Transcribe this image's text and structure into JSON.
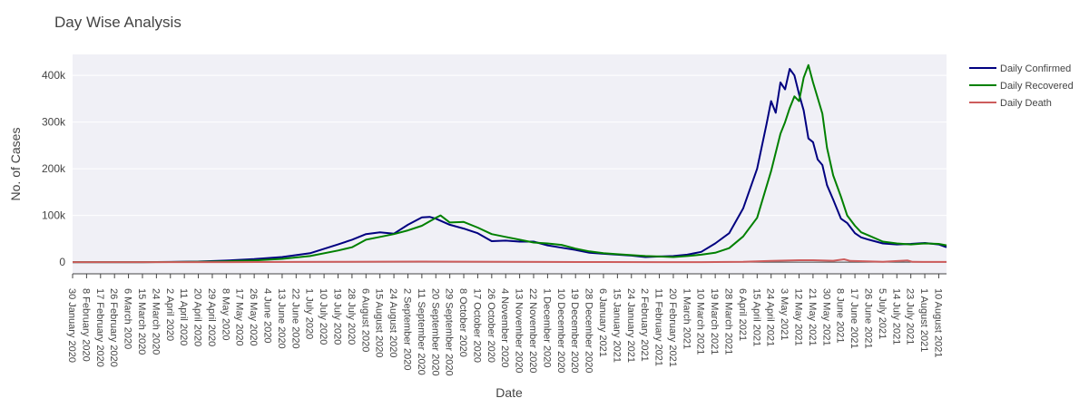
{
  "chart_data": {
    "type": "line",
    "title": "Day Wise Analysis",
    "xlabel": "Date",
    "ylabel": "No. of Cases",
    "x_range": [
      "2020-01-30",
      "2021-08-15"
    ],
    "ylim": [
      -25000,
      445000
    ],
    "y_ticks": [
      {
        "value": 0,
        "label": "0"
      },
      {
        "value": 100000,
        "label": "100k"
      },
      {
        "value": 200000,
        "label": "200k"
      },
      {
        "value": 300000,
        "label": "300k"
      },
      {
        "value": 400000,
        "label": "400k"
      }
    ],
    "x_ticks": [
      {
        "date": "2020-01-30",
        "label": "30 January 2020"
      },
      {
        "date": "2020-02-08",
        "label": "8 February 2020"
      },
      {
        "date": "2020-02-17",
        "label": "17 February 2020"
      },
      {
        "date": "2020-02-26",
        "label": "26 February 2020"
      },
      {
        "date": "2020-03-06",
        "label": "6 March 2020"
      },
      {
        "date": "2020-03-15",
        "label": "15 March 2020"
      },
      {
        "date": "2020-03-24",
        "label": "24 March 2020"
      },
      {
        "date": "2020-04-02",
        "label": "2 April 2020"
      },
      {
        "date": "2020-04-11",
        "label": "11 April 2020"
      },
      {
        "date": "2020-04-20",
        "label": "20 April 2020"
      },
      {
        "date": "2020-04-29",
        "label": "29 April 2020"
      },
      {
        "date": "2020-05-08",
        "label": "8 May 2020"
      },
      {
        "date": "2020-05-17",
        "label": "17 May 2020"
      },
      {
        "date": "2020-05-26",
        "label": "26 May 2020"
      },
      {
        "date": "2020-06-04",
        "label": "4 June 2020"
      },
      {
        "date": "2020-06-13",
        "label": "13 June 2020"
      },
      {
        "date": "2020-06-22",
        "label": "22 June 2020"
      },
      {
        "date": "2020-07-01",
        "label": "1 July 2020"
      },
      {
        "date": "2020-07-10",
        "label": "10 July 2020"
      },
      {
        "date": "2020-07-19",
        "label": "19 July 2020"
      },
      {
        "date": "2020-07-28",
        "label": "28 July 2020"
      },
      {
        "date": "2020-08-06",
        "label": "6 August 2020"
      },
      {
        "date": "2020-08-15",
        "label": "15 August 2020"
      },
      {
        "date": "2020-08-24",
        "label": "24 August 2020"
      },
      {
        "date": "2020-09-02",
        "label": "2 September 2020"
      },
      {
        "date": "2020-09-11",
        "label": "11 September 2020"
      },
      {
        "date": "2020-09-20",
        "label": "20 September 2020"
      },
      {
        "date": "2020-09-29",
        "label": "29 September 2020"
      },
      {
        "date": "2020-10-08",
        "label": "8 October 2020"
      },
      {
        "date": "2020-10-17",
        "label": "17 October 2020"
      },
      {
        "date": "2020-10-26",
        "label": "26 October 2020"
      },
      {
        "date": "2020-11-04",
        "label": "4 November 2020"
      },
      {
        "date": "2020-11-13",
        "label": "13 November 2020"
      },
      {
        "date": "2020-11-22",
        "label": "22 November 2020"
      },
      {
        "date": "2020-12-01",
        "label": "1 December 2020"
      },
      {
        "date": "2020-12-10",
        "label": "10 December 2020"
      },
      {
        "date": "2020-12-19",
        "label": "19 December 2020"
      },
      {
        "date": "2020-12-28",
        "label": "28 December 2020"
      },
      {
        "date": "2021-01-06",
        "label": "6 January 2021"
      },
      {
        "date": "2021-01-15",
        "label": "15 January 2021"
      },
      {
        "date": "2021-01-24",
        "label": "24 January 2021"
      },
      {
        "date": "2021-02-02",
        "label": "2 February 2021"
      },
      {
        "date": "2021-02-11",
        "label": "11 February 2021"
      },
      {
        "date": "2021-02-20",
        "label": "20 February 2021"
      },
      {
        "date": "2021-03-01",
        "label": "1 March 2021"
      },
      {
        "date": "2021-03-10",
        "label": "10 March 2021"
      },
      {
        "date": "2021-03-19",
        "label": "19 March 2021"
      },
      {
        "date": "2021-03-28",
        "label": "28 March 2021"
      },
      {
        "date": "2021-04-06",
        "label": "6 April 2021"
      },
      {
        "date": "2021-04-15",
        "label": "15 April 2021"
      },
      {
        "date": "2021-04-24",
        "label": "24 April 2021"
      },
      {
        "date": "2021-05-03",
        "label": "3 May 2021"
      },
      {
        "date": "2021-05-12",
        "label": "12 May 2021"
      },
      {
        "date": "2021-05-21",
        "label": "21 May 2021"
      },
      {
        "date": "2021-05-30",
        "label": "30 May 2021"
      },
      {
        "date": "2021-06-08",
        "label": "8 June 2021"
      },
      {
        "date": "2021-06-17",
        "label": "17 June 2021"
      },
      {
        "date": "2021-06-26",
        "label": "26 June 2021"
      },
      {
        "date": "2021-07-05",
        "label": "5 July 2021"
      },
      {
        "date": "2021-07-14",
        "label": "14 July 2021"
      },
      {
        "date": "2021-07-23",
        "label": "23 July 2021"
      },
      {
        "date": "2021-08-01",
        "label": "1 August 2021"
      },
      {
        "date": "2021-08-10",
        "label": "10 August 2021"
      }
    ],
    "series": [
      {
        "name": "Daily Confirmed",
        "color": "#000080",
        "points": [
          [
            "2020-01-30",
            0
          ],
          [
            "2020-03-15",
            100
          ],
          [
            "2020-04-02",
            500
          ],
          [
            "2020-04-20",
            1300
          ],
          [
            "2020-05-08",
            3300
          ],
          [
            "2020-05-26",
            6500
          ],
          [
            "2020-06-13",
            11000
          ],
          [
            "2020-07-01",
            19000
          ],
          [
            "2020-07-19",
            38000
          ],
          [
            "2020-07-28",
            48000
          ],
          [
            "2020-08-06",
            60000
          ],
          [
            "2020-08-15",
            64000
          ],
          [
            "2020-08-24",
            61000
          ],
          [
            "2020-09-02",
            80000
          ],
          [
            "2020-09-11",
            96000
          ],
          [
            "2020-09-16",
            97000
          ],
          [
            "2020-09-20",
            93000
          ],
          [
            "2020-09-29",
            80000
          ],
          [
            "2020-10-08",
            72000
          ],
          [
            "2020-10-17",
            62000
          ],
          [
            "2020-10-26",
            45000
          ],
          [
            "2020-11-04",
            46000
          ],
          [
            "2020-11-13",
            44000
          ],
          [
            "2020-11-22",
            44000
          ],
          [
            "2020-12-01",
            36000
          ],
          [
            "2020-12-10",
            31000
          ],
          [
            "2020-12-19",
            26000
          ],
          [
            "2020-12-28",
            20000
          ],
          [
            "2021-01-06",
            18000
          ],
          [
            "2021-01-15",
            16000
          ],
          [
            "2021-01-24",
            14000
          ],
          [
            "2021-02-02",
            11000
          ],
          [
            "2021-02-11",
            12000
          ],
          [
            "2021-02-20",
            13000
          ],
          [
            "2021-03-01",
            16000
          ],
          [
            "2021-03-10",
            22000
          ],
          [
            "2021-03-19",
            40000
          ],
          [
            "2021-03-28",
            62000
          ],
          [
            "2021-04-06",
            115000
          ],
          [
            "2021-04-15",
            200000
          ],
          [
            "2021-04-21",
            295000
          ],
          [
            "2021-04-24",
            345000
          ],
          [
            "2021-04-27",
            320000
          ],
          [
            "2021-04-30",
            385000
          ],
          [
            "2021-05-03",
            370000
          ],
          [
            "2021-05-06",
            414000
          ],
          [
            "2021-05-09",
            400000
          ],
          [
            "2021-05-12",
            360000
          ],
          [
            "2021-05-15",
            325000
          ],
          [
            "2021-05-18",
            265000
          ],
          [
            "2021-05-21",
            257000
          ],
          [
            "2021-05-24",
            220000
          ],
          [
            "2021-05-27",
            208000
          ],
          [
            "2021-05-30",
            165000
          ],
          [
            "2021-06-03",
            134000
          ],
          [
            "2021-06-08",
            93000
          ],
          [
            "2021-06-12",
            84000
          ],
          [
            "2021-06-17",
            62000
          ],
          [
            "2021-06-21",
            53000
          ],
          [
            "2021-06-26",
            48000
          ],
          [
            "2021-07-05",
            40000
          ],
          [
            "2021-07-14",
            38000
          ],
          [
            "2021-07-23",
            39000
          ],
          [
            "2021-08-01",
            41000
          ],
          [
            "2021-08-10",
            38000
          ],
          [
            "2021-08-15",
            32000
          ]
        ]
      },
      {
        "name": "Daily Recovered",
        "color": "#008000",
        "points": [
          [
            "2020-01-30",
            0
          ],
          [
            "2020-03-15",
            50
          ],
          [
            "2020-04-02",
            200
          ],
          [
            "2020-04-20",
            700
          ],
          [
            "2020-05-08",
            1800
          ],
          [
            "2020-05-26",
            3500
          ],
          [
            "2020-06-13",
            7000
          ],
          [
            "2020-07-01",
            13000
          ],
          [
            "2020-07-19",
            25000
          ],
          [
            "2020-07-28",
            32000
          ],
          [
            "2020-08-06",
            48000
          ],
          [
            "2020-08-15",
            54000
          ],
          [
            "2020-08-24",
            60000
          ],
          [
            "2020-09-02",
            68000
          ],
          [
            "2020-09-11",
            78000
          ],
          [
            "2020-09-20",
            95000
          ],
          [
            "2020-09-23",
            100000
          ],
          [
            "2020-09-29",
            85000
          ],
          [
            "2020-10-08",
            86000
          ],
          [
            "2020-10-17",
            74000
          ],
          [
            "2020-10-26",
            60000
          ],
          [
            "2020-11-04",
            54000
          ],
          [
            "2020-11-13",
            48000
          ],
          [
            "2020-11-22",
            42000
          ],
          [
            "2020-12-01",
            40000
          ],
          [
            "2020-12-10",
            37000
          ],
          [
            "2020-12-19",
            29000
          ],
          [
            "2020-12-28",
            23000
          ],
          [
            "2021-01-06",
            19000
          ],
          [
            "2021-01-15",
            17000
          ],
          [
            "2021-01-24",
            15000
          ],
          [
            "2021-02-02",
            13000
          ],
          [
            "2021-02-11",
            12000
          ],
          [
            "2021-02-20",
            11000
          ],
          [
            "2021-03-01",
            13000
          ],
          [
            "2021-03-10",
            16000
          ],
          [
            "2021-03-19",
            20000
          ],
          [
            "2021-03-28",
            30000
          ],
          [
            "2021-04-06",
            55000
          ],
          [
            "2021-04-15",
            95000
          ],
          [
            "2021-04-24",
            195000
          ],
          [
            "2021-04-30",
            275000
          ],
          [
            "2021-05-03",
            300000
          ],
          [
            "2021-05-06",
            330000
          ],
          [
            "2021-05-09",
            355000
          ],
          [
            "2021-05-12",
            345000
          ],
          [
            "2021-05-15",
            395000
          ],
          [
            "2021-05-18",
            422000
          ],
          [
            "2021-05-21",
            385000
          ],
          [
            "2021-05-24",
            352000
          ],
          [
            "2021-05-27",
            318000
          ],
          [
            "2021-05-30",
            245000
          ],
          [
            "2021-06-03",
            186000
          ],
          [
            "2021-06-08",
            140000
          ],
          [
            "2021-06-12",
            100000
          ],
          [
            "2021-06-17",
            78000
          ],
          [
            "2021-06-21",
            64000
          ],
          [
            "2021-06-26",
            57000
          ],
          [
            "2021-07-05",
            44000
          ],
          [
            "2021-07-14",
            40000
          ],
          [
            "2021-07-23",
            38000
          ],
          [
            "2021-08-01",
            40000
          ],
          [
            "2021-08-10",
            39000
          ],
          [
            "2021-08-15",
            36000
          ]
        ]
      },
      {
        "name": "Daily Death",
        "color": "#cd5c5c",
        "points": [
          [
            "2020-01-30",
            0
          ],
          [
            "2020-04-02",
            10
          ],
          [
            "2020-05-08",
            100
          ],
          [
            "2020-06-13",
            350
          ],
          [
            "2020-07-19",
            650
          ],
          [
            "2020-08-15",
            950
          ],
          [
            "2020-09-11",
            1150
          ],
          [
            "2020-10-08",
            1000
          ],
          [
            "2020-11-04",
            600
          ],
          [
            "2020-12-01",
            450
          ],
          [
            "2021-01-06",
            250
          ],
          [
            "2021-02-11",
            100
          ],
          [
            "2021-03-10",
            150
          ],
          [
            "2021-04-06",
            600
          ],
          [
            "2021-04-24",
            2600
          ],
          [
            "2021-05-12",
            4100
          ],
          [
            "2021-05-21",
            4200
          ],
          [
            "2021-06-03",
            3000
          ],
          [
            "2021-06-10",
            6100
          ],
          [
            "2021-06-14",
            2500
          ],
          [
            "2021-07-05",
            900
          ],
          [
            "2021-07-21",
            3500
          ],
          [
            "2021-07-24",
            700
          ],
          [
            "2021-08-15",
            500
          ]
        ]
      }
    ]
  }
}
